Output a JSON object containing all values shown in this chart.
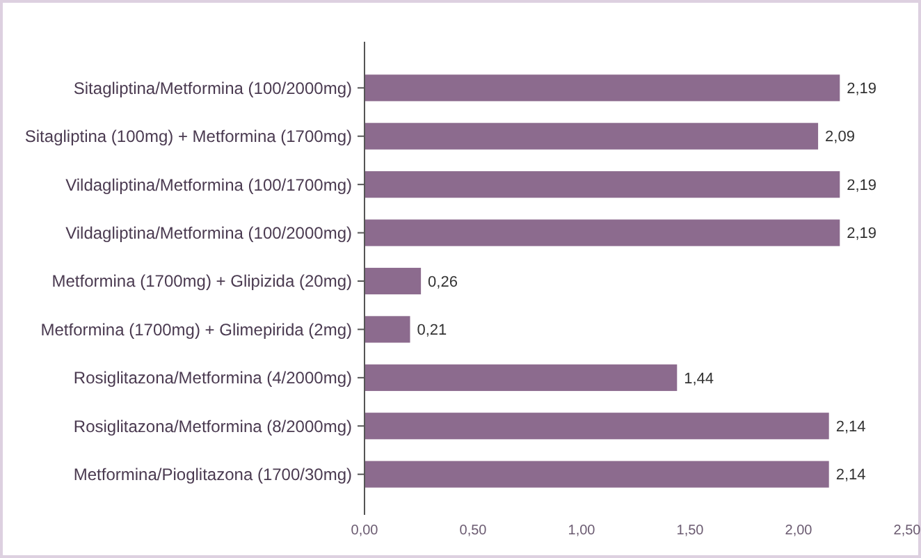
{
  "chart_data": {
    "type": "bar",
    "orientation": "horizontal",
    "categories": [
      "Sitagliptina/Metformina (100/2000mg)",
      "Sitagliptina (100mg) + Metformina (1700mg)",
      "Vildagliptina/Metformina (100/1700mg)",
      "Vildagliptina/Metformina (100/2000mg)",
      "Metformina (1700mg) + Glipizida (20mg)",
      "Metformina (1700mg) + Glimepirida (2mg)",
      "Rosiglitazona/Metformina (4/2000mg)",
      "Rosiglitazona/Metformina (8/2000mg)",
      "Metformina/Pioglitazona (1700/30mg)"
    ],
    "values": [
      2.19,
      2.09,
      2.19,
      2.19,
      0.26,
      0.21,
      1.44,
      2.14,
      2.14
    ],
    "value_labels": [
      "2,19",
      "2,09",
      "2,19",
      "2,19",
      "0,26",
      "0,21",
      "1,44",
      "2,14",
      "2,14"
    ],
    "color": "#8c6b8e",
    "xlim": [
      0,
      2.5
    ],
    "xticks": [
      {
        "value": 0,
        "label": "0,00"
      },
      {
        "value": 0.5,
        "label": "0,50"
      },
      {
        "value": 1,
        "label": "1,00"
      },
      {
        "value": 1.5,
        "label": "1,50"
      },
      {
        "value": 2,
        "label": "2,00"
      },
      {
        "value": 2.5,
        "label": "2,50"
      }
    ],
    "grid": false
  }
}
